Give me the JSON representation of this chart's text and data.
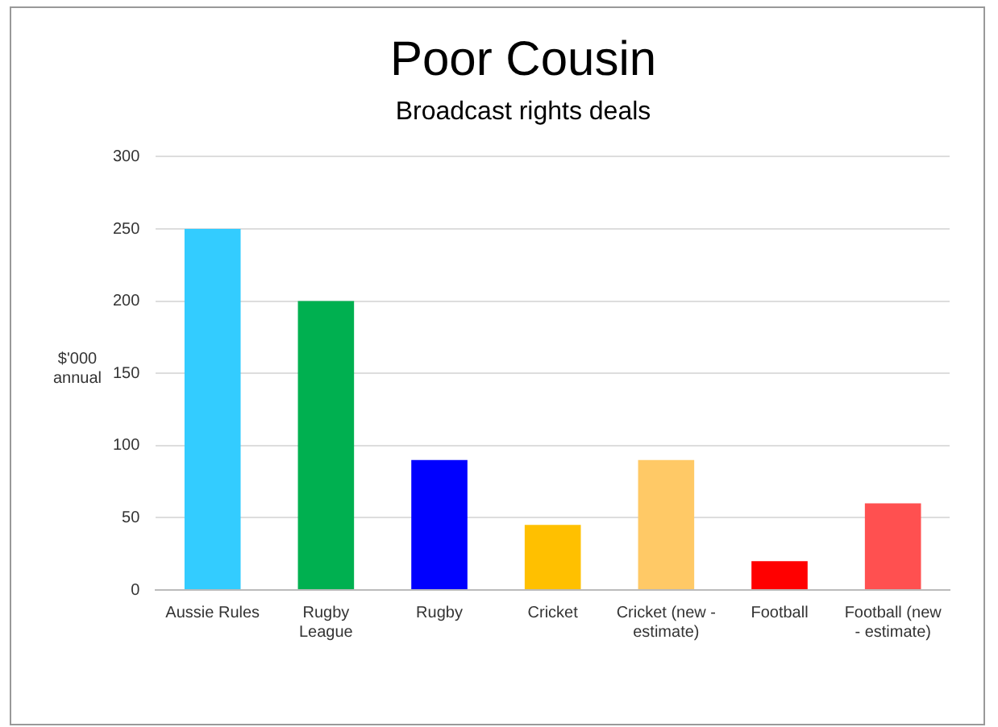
{
  "chart_data": {
    "type": "bar",
    "title": "Poor Cousin",
    "subtitle": "Broadcast rights deals",
    "ylabel": "$'000 annual",
    "categories": [
      "Aussie Rules",
      "Rugby League",
      "Rugby",
      "Cricket",
      "Cricket (new - estimate)",
      "Football",
      "Football (new - estimate)"
    ],
    "values": [
      250,
      200,
      90,
      45,
      90,
      20,
      60
    ],
    "colors": [
      "#33ccff",
      "#00b050",
      "#0000ff",
      "#ffc000",
      "#ffc966",
      "#ff0000",
      "#ff5050"
    ],
    "ylim": [
      0,
      300
    ],
    "yticks": [
      0,
      50,
      100,
      150,
      200,
      250,
      300
    ],
    "grid": "y"
  }
}
